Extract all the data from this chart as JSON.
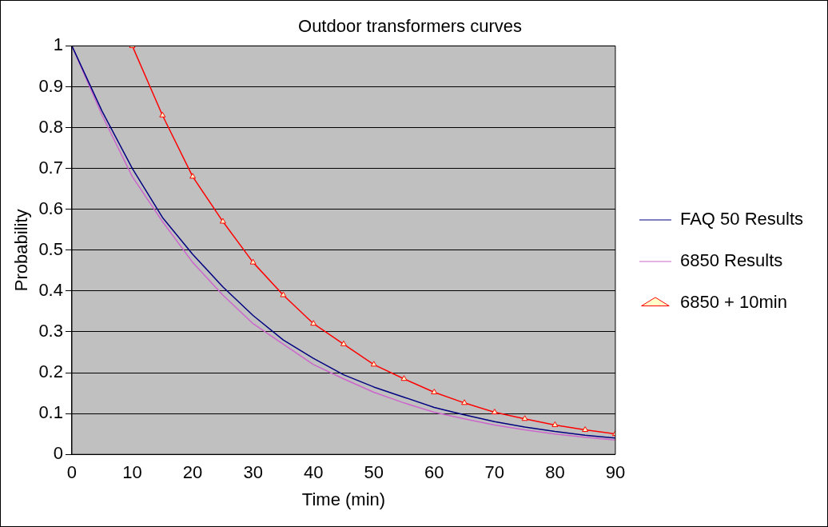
{
  "chart_data": {
    "type": "line",
    "title": "Outdoor transformers curves",
    "xlabel": "Time (min)",
    "ylabel": "Probability",
    "xlim": [
      0,
      90
    ],
    "xticks": [
      0,
      10,
      20,
      30,
      40,
      50,
      60,
      70,
      80,
      90
    ],
    "ylim": [
      0,
      1
    ],
    "yticks": [
      0,
      0.1,
      0.2,
      0.3,
      0.4,
      0.5,
      0.6,
      0.7,
      0.8,
      0.9,
      1
    ],
    "grid": "y",
    "legend": "right",
    "series": [
      {
        "name": "FAQ 50 Results",
        "color": "#000080",
        "marker": "none",
        "x": [
          0,
          5,
          10,
          15,
          20,
          25,
          30,
          35,
          40,
          45,
          50,
          55,
          60,
          65,
          70,
          75,
          80,
          85,
          90
        ],
        "values": [
          1,
          0.84,
          0.7,
          0.58,
          0.49,
          0.41,
          0.34,
          0.28,
          0.235,
          0.195,
          0.165,
          0.14,
          0.115,
          0.097,
          0.08,
          0.067,
          0.056,
          0.047,
          0.04
        ]
      },
      {
        "name": "6850 Results",
        "color": "#cc66cc",
        "marker": "none",
        "x": [
          0,
          5,
          10,
          15,
          20,
          25,
          30,
          35,
          40,
          45,
          50,
          55,
          60,
          65,
          70,
          75,
          80,
          85,
          90
        ],
        "values": [
          1,
          0.83,
          0.68,
          0.57,
          0.47,
          0.39,
          0.32,
          0.27,
          0.22,
          0.185,
          0.152,
          0.126,
          0.103,
          0.087,
          0.072,
          0.06,
          0.05,
          0.042,
          0.035
        ]
      },
      {
        "name": "6850 + 10min",
        "color": "#ff0000",
        "marker": "triangle",
        "x": [
          10,
          15,
          20,
          25,
          30,
          35,
          40,
          45,
          50,
          55,
          60,
          65,
          70,
          75,
          80,
          85,
          90
        ],
        "values": [
          1,
          0.83,
          0.68,
          0.57,
          0.47,
          0.39,
          0.32,
          0.27,
          0.22,
          0.185,
          0.152,
          0.126,
          0.103,
          0.087,
          0.072,
          0.06,
          0.05
        ]
      }
    ]
  }
}
